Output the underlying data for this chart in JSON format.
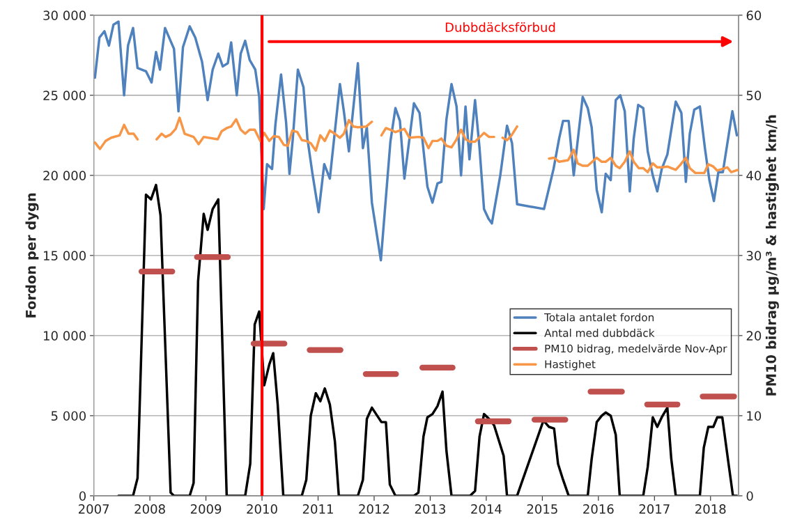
{
  "chart_data": {
    "type": "line",
    "ylabel": "Fordon per dygn",
    "y2label": "PM10 bidrag µg/m³ & hastighet km/h",
    "xlim": [
      2007,
      2018.5
    ],
    "xticks": [
      2007,
      2008,
      2009,
      2010,
      2011,
      2012,
      2013,
      2014,
      2015,
      2016,
      2017,
      2018
    ],
    "ylim": [
      0,
      30000
    ],
    "yticks": [
      0,
      {
        "value": 5000,
        "label": "5 000"
      },
      {
        "value": 10000,
        "label": "10 000"
      },
      {
        "value": 15000,
        "label": "15 000"
      },
      {
        "value": 20000,
        "label": "20 000"
      },
      {
        "value": 25000,
        "label": "25 000"
      },
      {
        "value": 30000,
        "label": "30 000"
      }
    ],
    "y2lim": [
      0,
      60
    ],
    "y2ticks": [
      0,
      10,
      20,
      30,
      40,
      50,
      60
    ],
    "grid": "y",
    "legend": "right",
    "marker": "none",
    "line_style": "solid",
    "ref_lines": [
      {
        "axis": "x",
        "value": 2010,
        "color": "#ff0000"
      }
    ],
    "annotations": [
      "Dubbdäcksförbud"
    ],
    "series": [
      {
        "name": "Totala antalet fordon",
        "color": "#4f81bd",
        "x": [
          2007.02,
          2007.1,
          2007.19,
          2007.27,
          2007.35,
          2007.44,
          2007.54,
          2007.61,
          2007.7,
          2007.78,
          2007.93,
          2008.03,
          2008.11,
          2008.18,
          2008.27,
          2008.43,
          2008.51,
          2008.59,
          2008.71,
          2008.81,
          2008.93,
          2009.03,
          2009.12,
          2009.22,
          2009.3,
          2009.39,
          2009.45,
          2009.55,
          2009.62,
          2009.7,
          2009.78,
          2009.88,
          2009.95,
          2010.03,
          2010.09,
          2010.18,
          2010.24,
          2010.34,
          2010.43,
          2010.49,
          2010.55,
          2010.64,
          2010.74,
          2010.81,
          2010.9,
          2011.01,
          2011.11,
          2011.21,
          2011.39,
          2011.46,
          2011.55,
          2011.71,
          2011.8,
          2011.87,
          2011.96,
          2012.12,
          2012.29,
          2012.38,
          2012.46,
          2012.54,
          2012.71,
          2012.81,
          2012.95,
          2013.04,
          2013.13,
          2013.2,
          2013.29,
          2013.38,
          2013.47,
          2013.55,
          2013.63,
          2013.7,
          2013.8,
          2013.88,
          2013.96,
          2014.04,
          2014.1,
          2014.25,
          2014.37,
          2014.46,
          2014.55,
          2015.03,
          2015.2,
          2015.3,
          2015.37,
          2015.47,
          2015.56,
          2015.72,
          2015.81,
          2015.88,
          2015.97,
          2016.06,
          2016.13,
          2016.22,
          2016.31,
          2016.39,
          2016.47,
          2016.56,
          2016.63,
          2016.71,
          2016.8,
          2016.88,
          2016.97,
          2017.05,
          2017.13,
          2017.23,
          2017.38,
          2017.48,
          2017.56,
          2017.63,
          2017.71,
          2017.81,
          2017.9,
          2017.98,
          2018.06,
          2018.14,
          2018.22,
          2018.39,
          2018.47
        ],
        "values": [
          26100,
          28600,
          29000,
          28100,
          29400,
          29600,
          25000,
          28100,
          29200,
          26700,
          26500,
          25800,
          27700,
          26600,
          29200,
          27900,
          24000,
          28000,
          29300,
          28600,
          27100,
          24700,
          26600,
          27600,
          26800,
          27000,
          28300,
          25000,
          27600,
          28400,
          27200,
          26600,
          24900,
          17900,
          20700,
          20400,
          23200,
          26300,
          23300,
          20100,
          22300,
          26600,
          25500,
          22300,
          20100,
          17700,
          20700,
          19800,
          25700,
          24000,
          21500,
          27000,
          21700,
          23000,
          18300,
          14700,
          22100,
          24200,
          23400,
          19800,
          24500,
          23900,
          19300,
          18300,
          19500,
          19600,
          23500,
          25700,
          24300,
          20000,
          24300,
          21000,
          24700,
          21700,
          17900,
          17300,
          17000,
          20000,
          23100,
          22000,
          18200,
          17900,
          20400,
          22300,
          23400,
          23400,
          20000,
          24900,
          24200,
          23000,
          19100,
          17700,
          20100,
          19700,
          24700,
          25000,
          24000,
          19000,
          22300,
          24400,
          24200,
          21500,
          20000,
          19000,
          20400,
          21300,
          24600,
          23900,
          19600,
          22600,
          24100,
          24300,
          21700,
          19700,
          18400,
          20200,
          20200,
          24000,
          22500
        ]
      },
      {
        "name": "Antal med dubbdäck",
        "color": "#000000",
        "x": [
          2007.44,
          2007.7,
          2007.78,
          2007.93,
          2008.02,
          2008.11,
          2008.19,
          2008.37,
          2008.43,
          2008.71,
          2008.78,
          2008.86,
          2008.96,
          2009.03,
          2009.12,
          2009.22,
          2009.37,
          2009.7,
          2009.79,
          2009.87,
          2009.95,
          2010.04,
          2010.13,
          2010.2,
          2010.28,
          2010.38,
          2010.71,
          2010.79,
          2010.87,
          2010.96,
          2011.04,
          2011.12,
          2011.21,
          2011.3,
          2011.37,
          2011.71,
          2011.8,
          2011.87,
          2011.96,
          2012.13,
          2012.21,
          2012.28,
          2012.38,
          2012.71,
          2012.79,
          2012.88,
          2012.95,
          2013.04,
          2013.13,
          2013.22,
          2013.29,
          2013.38,
          2013.71,
          2013.8,
          2013.88,
          2013.96,
          2014.05,
          2014.14,
          2014.31,
          2014.37,
          2014.55,
          2015.02,
          2015.12,
          2015.21,
          2015.28,
          2015.37,
          2015.47,
          2015.81,
          2015.88,
          2015.97,
          2016.06,
          2016.13,
          2016.22,
          2016.31,
          2016.38,
          2016.8,
          2016.88,
          2016.97,
          2017.05,
          2017.13,
          2017.23,
          2017.3,
          2017.38,
          2017.81,
          2017.88,
          2017.96,
          2018.05,
          2018.12,
          2018.21,
          2018.31,
          2018.4,
          2018.47
        ],
        "values": [
          0,
          0,
          1100,
          18800,
          18500,
          19400,
          17500,
          200,
          0,
          0,
          800,
          13400,
          17600,
          16600,
          17900,
          18500,
          0,
          0,
          2000,
          10700,
          11500,
          6900,
          8200,
          8900,
          5700,
          0,
          0,
          1000,
          5000,
          6400,
          5900,
          6700,
          5700,
          3400,
          0,
          0,
          1000,
          4800,
          5500,
          4600,
          4600,
          700,
          0,
          0,
          200,
          3700,
          4900,
          5100,
          5600,
          6500,
          2800,
          0,
          0,
          300,
          3700,
          5100,
          4800,
          4400,
          2500,
          0,
          0,
          4700,
          4300,
          4200,
          2000,
          1000,
          0,
          0,
          2300,
          4600,
          5000,
          5200,
          5000,
          3800,
          0,
          0,
          1800,
          4900,
          4300,
          4900,
          5500,
          2300,
          0,
          0,
          3000,
          4300,
          4300,
          4900,
          4900,
          2300,
          0,
          0
        ]
      },
      {
        "name": "PM10 bidrag, medelvärde Nov-Apr",
        "color": "#c0504d",
        "axis": "y2",
        "x": [
          2007.85,
          2008.4,
          2008.62,
          2008.84,
          2009.39,
          2009.62,
          2009.85,
          2010.4,
          2010.62,
          2010.85,
          2011.4,
          2011.62,
          2011.85,
          2012.39,
          2012.62,
          2012.86,
          2013.4,
          2013.62,
          2013.85,
          2014.4,
          2014.62,
          2014.86,
          2015.41,
          2015.62,
          2015.86,
          2016.42,
          2016.62,
          2016.87,
          2017.41,
          2017.62,
          2017.86,
          2018.42
        ],
        "values": [
          28.0,
          28.0,
          null,
          29.8,
          29.8,
          null,
          19.0,
          19.0,
          null,
          18.2,
          18.2,
          null,
          15.2,
          15.2,
          null,
          16.0,
          16.0,
          null,
          9.3,
          9.3,
          null,
          9.5,
          9.5,
          null,
          13.0,
          13.0,
          null,
          11.4,
          11.4,
          null,
          12.4,
          12.4
        ]
      },
      {
        "name": "Hastighet",
        "color": "#f79646",
        "axis": "y2",
        "x": [
          2007.02,
          2007.11,
          2007.21,
          2007.31,
          2007.46,
          2007.54,
          2007.62,
          2007.71,
          2007.78,
          2007.95,
          2008.12,
          2008.21,
          2008.28,
          2008.37,
          2008.46,
          2008.53,
          2008.62,
          2008.78,
          2008.87,
          2008.96,
          2009.21,
          2009.28,
          2009.37,
          2009.45,
          2009.54,
          2009.62,
          2009.7,
          2009.78,
          2009.87,
          2009.97,
          2010.04,
          2010.13,
          2010.21,
          2010.3,
          2010.39,
          2010.46,
          2010.54,
          2010.63,
          2010.71,
          2010.79,
          2010.87,
          2010.96,
          2011.04,
          2011.12,
          2011.21,
          2011.3,
          2011.39,
          2011.46,
          2011.55,
          2011.63,
          2011.71,
          2011.86,
          2011.96,
          2012.04,
          2012.13,
          2012.21,
          2012.29,
          2012.38,
          2012.54,
          2012.63,
          2012.79,
          2012.88,
          2012.97,
          2013.04,
          2013.13,
          2013.2,
          2013.29,
          2013.38,
          2013.47,
          2013.55,
          2013.63,
          2013.71,
          2013.8,
          2013.96,
          2014.05,
          2014.14,
          2014.21,
          2014.29,
          2014.37,
          2014.45,
          2014.55,
          2014.8,
          2015.12,
          2015.21,
          2015.3,
          2015.46,
          2015.56,
          2015.63,
          2015.72,
          2015.81,
          2015.97,
          2016.06,
          2016.13,
          2016.22,
          2016.31,
          2016.38,
          2016.47,
          2016.56,
          2016.63,
          2016.72,
          2016.8,
          2016.88,
          2016.97,
          2017.05,
          2017.13,
          2017.23,
          2017.38,
          2017.46,
          2017.56,
          2017.63,
          2017.73,
          2017.81,
          2017.89,
          2017.96,
          2018.05,
          2018.12,
          2018.3,
          2018.37,
          2018.49
        ],
        "values": [
          44.1,
          43.3,
          44.3,
          44.7,
          45.0,
          46.3,
          45.2,
          45.2,
          44.5,
          null,
          44.5,
          45.2,
          44.8,
          45.1,
          45.8,
          47.2,
          45.2,
          44.8,
          43.9,
          44.8,
          44.5,
          45.5,
          45.9,
          46.1,
          47.0,
          45.7,
          45.2,
          45.7,
          45.7,
          44.3,
          45.3,
          44.3,
          44.9,
          44.8,
          43.8,
          43.7,
          45.6,
          45.4,
          44.4,
          44.3,
          44.0,
          43.1,
          45.0,
          44.3,
          45.6,
          45.2,
          44.7,
          45.2,
          46.9,
          46.1,
          46.0,
          46.1,
          46.7,
          null,
          45.0,
          45.9,
          45.7,
          45.4,
          45.8,
          44.7,
          44.8,
          44.7,
          43.4,
          44.3,
          44.3,
          44.6,
          43.7,
          43.5,
          44.5,
          45.7,
          44.5,
          44.2,
          44.2,
          45.3,
          44.8,
          44.8,
          null,
          44.7,
          44.4,
          45.0,
          46.1,
          null,
          42.1,
          42.2,
          41.7,
          41.9,
          43.2,
          41.5,
          41.2,
          41.2,
          42.2,
          41.7,
          41.7,
          42.2,
          41.2,
          40.9,
          41.7,
          43.0,
          41.7,
          40.9,
          40.9,
          40.4,
          41.5,
          41.0,
          41.0,
          41.1,
          40.7,
          41.3,
          42.2,
          40.9,
          40.3,
          40.3,
          40.3,
          41.4,
          41.1,
          40.6,
          41.0,
          40.4,
          40.7
        ]
      }
    ]
  }
}
